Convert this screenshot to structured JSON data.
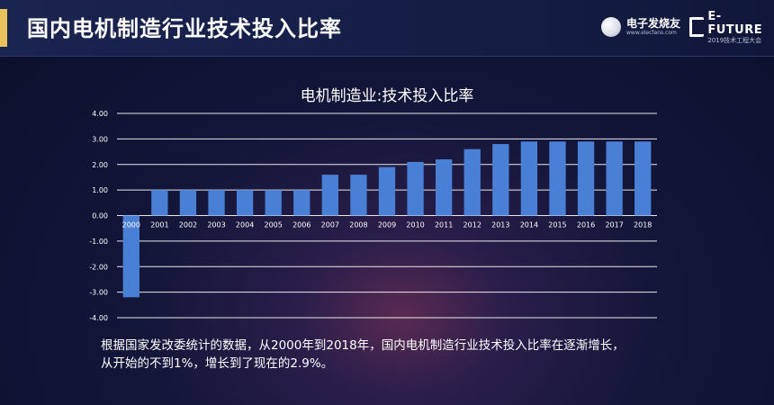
{
  "header": {
    "title": "国内电机制造行业技术投入比率",
    "logo_elecfans_name": "电子发烧友",
    "logo_elecfans_url": "www.elecfans.com",
    "logo_efuture_name": "E-FUTURE",
    "logo_efuture_sub": "2019技术工程大会"
  },
  "caption": {
    "line1": "根据国家发改委统计的数据，从2000年到2018年，国内电机制造行业技术投入比率在逐渐增长，",
    "line2": "从开始的不到1%，增长到了现在的2.9%。"
  },
  "colors": {
    "bar": "#4a7fd6",
    "accent": "#e8c25a"
  },
  "chart_data": {
    "type": "bar",
    "title": "电机制造业:技术投入比率",
    "xlabel": "",
    "ylabel": "",
    "ylim": [
      -4,
      4
    ],
    "yticks": [
      "-4.00",
      "-3.00",
      "-2.00",
      "-1.00",
      "0.00",
      "1.00",
      "2.00",
      "3.00",
      "4.00"
    ],
    "grid": true,
    "categories": [
      "2000",
      "2001",
      "2002",
      "2003",
      "2004",
      "2005",
      "2006",
      "2007",
      "2008",
      "2009",
      "2010",
      "2011",
      "2012",
      "2013",
      "2014",
      "2015",
      "2016",
      "2017",
      "2018"
    ],
    "values": [
      -3.2,
      1.0,
      1.0,
      1.0,
      1.0,
      1.0,
      1.0,
      1.6,
      1.6,
      1.9,
      2.1,
      2.2,
      2.6,
      2.8,
      2.9,
      2.9,
      2.9,
      2.9,
      2.9
    ]
  }
}
